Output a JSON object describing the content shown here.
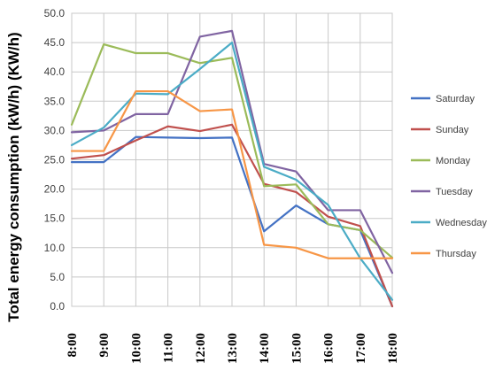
{
  "chart_data": {
    "type": "line",
    "ylabel": "Total energy consumption  (kW/h) (KW/h)",
    "xlabel": "",
    "ylim": [
      0,
      50
    ],
    "yticks": [
      "0.0",
      "5.0",
      "10.0",
      "15.0",
      "20.0",
      "25.0",
      "30.0",
      "35.0",
      "40.0",
      "45.0",
      "50.0"
    ],
    "grid": true,
    "legend_position": "right",
    "x_labels": [
      "8:00",
      "9:00",
      "10:00",
      "11:00",
      "12:00",
      "13:00",
      "14:00",
      "15:00",
      "16:00",
      "17:00",
      "18:00"
    ],
    "x_values": [
      8.0,
      8.5,
      9.0,
      9.5,
      10.0,
      10.5,
      11.0,
      11.5,
      12.0,
      12.5,
      13.0
    ],
    "series": [
      {
        "name": "Saturday",
        "color": "#4472C4",
        "values": [
          24.6,
          24.6,
          28.9,
          28.8,
          28.7,
          28.8,
          12.8,
          17.2,
          14.0,
          13.0,
          0.0
        ]
      },
      {
        "name": "Sunday",
        "color": "#C0504D",
        "values": [
          25.2,
          25.8,
          28.3,
          30.7,
          29.9,
          31.0,
          20.9,
          19.5,
          15.3,
          13.7,
          0.0
        ]
      },
      {
        "name": "Monday",
        "color": "#9BBB59",
        "values": [
          31.0,
          44.7,
          43.2,
          43.2,
          41.5,
          42.4,
          20.5,
          20.8,
          14.0,
          13.0,
          8.3
        ]
      },
      {
        "name": "Tuesday",
        "color": "#8064A2",
        "values": [
          29.7,
          30.0,
          32.8,
          32.8,
          46.0,
          47.0,
          24.3,
          23.0,
          16.4,
          16.4,
          5.7
        ]
      },
      {
        "name": "Wednesday",
        "color": "#4BACC6",
        "values": [
          27.5,
          30.5,
          36.3,
          36.2,
          40.5,
          45.0,
          23.8,
          21.6,
          17.3,
          8.2,
          1.1
        ]
      },
      {
        "name": "Thursday",
        "color": "#F79646",
        "values": [
          26.5,
          26.5,
          36.7,
          36.7,
          33.3,
          33.6,
          10.5,
          10.0,
          8.2,
          8.2,
          8.2
        ]
      }
    ]
  }
}
